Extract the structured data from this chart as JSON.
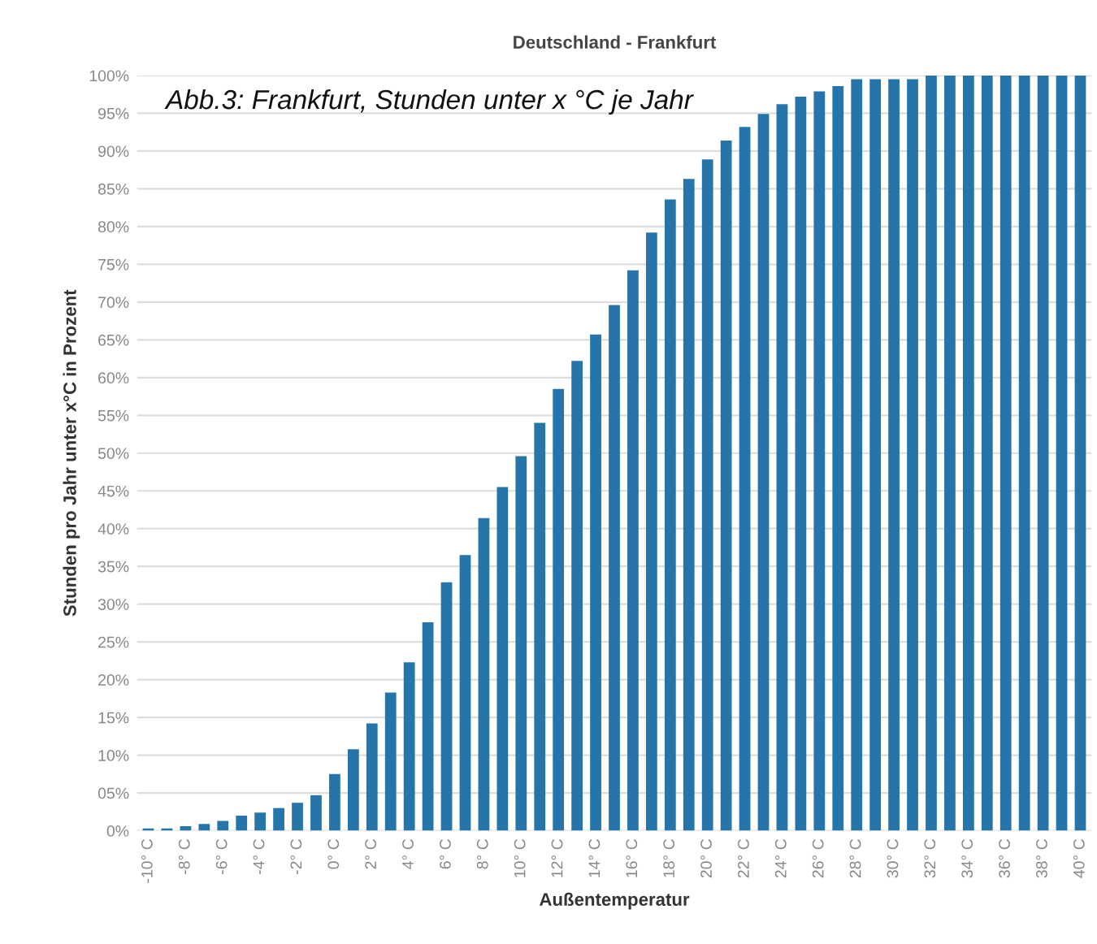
{
  "chart_data": {
    "type": "bar",
    "title": "Deutschland - Frankfurt",
    "xlabel": "Außentemperatur",
    "ylabel": "Stunden pro Jahr unter x°C in Prozent",
    "annotations": [
      "Abb.3: Frankfurt, Stunden unter x °C je Jahr"
    ],
    "categories": [
      "-10° C",
      null,
      "-8° C",
      null,
      "-6° C",
      null,
      "-4° C",
      null,
      "-2° C",
      null,
      "0° C",
      null,
      "2° C",
      null,
      "4° C",
      null,
      "6° C",
      null,
      "8° C",
      null,
      "10° C",
      null,
      "12° C",
      null,
      "14° C",
      null,
      "16° C",
      null,
      "18° C",
      null,
      "20° C",
      null,
      "22° C",
      null,
      "24° C",
      null,
      "26° C",
      null,
      "28° C",
      null,
      "30° C",
      null,
      "32° C",
      null,
      "34° C",
      null,
      "36° C",
      null,
      "38° C",
      null,
      "40° C"
    ],
    "values": [
      0.3,
      0.3,
      0.6,
      0.9,
      1.3,
      2.0,
      2.4,
      3.0,
      3.7,
      4.7,
      7.5,
      10.8,
      14.2,
      18.3,
      22.3,
      27.6,
      32.9,
      36.5,
      41.4,
      45.5,
      49.6,
      54.0,
      58.5,
      62.2,
      65.7,
      69.6,
      74.2,
      79.2,
      83.6,
      86.3,
      88.9,
      91.4,
      93.2,
      94.9,
      96.2,
      97.2,
      97.9,
      98.6,
      99.5,
      99.5,
      99.5,
      99.5,
      100,
      100,
      100,
      100,
      100,
      100,
      100,
      100,
      100
    ],
    "color": "#2575aa",
    "ylim": [
      0,
      100
    ],
    "yticks": [
      {
        "value": 0,
        "label": "0%"
      },
      {
        "value": 5,
        "label": "05%"
      },
      {
        "value": 10,
        "label": "10%"
      },
      {
        "value": 15,
        "label": "15%"
      },
      {
        "value": 20,
        "label": "20%"
      },
      {
        "value": 25,
        "label": "25%"
      },
      {
        "value": 30,
        "label": "30%"
      },
      {
        "value": 35,
        "label": "35%"
      },
      {
        "value": 40,
        "label": "40%"
      },
      {
        "value": 45,
        "label": "45%"
      },
      {
        "value": 50,
        "label": "50%"
      },
      {
        "value": 55,
        "label": "55%"
      },
      {
        "value": 60,
        "label": "60%"
      },
      {
        "value": 65,
        "label": "65%"
      },
      {
        "value": 70,
        "label": "70%"
      },
      {
        "value": 75,
        "label": "75%"
      },
      {
        "value": 80,
        "label": "80%"
      },
      {
        "value": 85,
        "label": "85%"
      },
      {
        "value": 90,
        "label": "90%"
      },
      {
        "value": 95,
        "label": "95%"
      },
      {
        "value": 100,
        "label": "100%"
      }
    ],
    "grid": "y"
  }
}
